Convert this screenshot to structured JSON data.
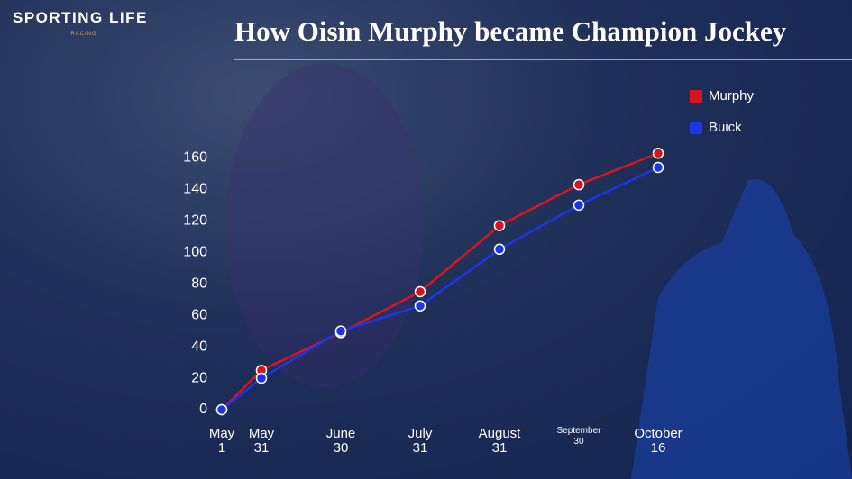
{
  "brand": {
    "name": "SPORTING LIFE",
    "sub": "RACING"
  },
  "chart_data": {
    "type": "line",
    "title": "How Oisin Murphy became Champion Jockey",
    "categories": [
      "May 1",
      "May 31",
      "June 30",
      "July 31",
      "August 31",
      "September 30",
      "October 16"
    ],
    "series": [
      {
        "name": "Murphy",
        "color": "#d7141e",
        "values": [
          0,
          25,
          49,
          75,
          117,
          143,
          163
        ]
      },
      {
        "name": "Buick",
        "color": "#1c35e6",
        "values": [
          0,
          20,
          50,
          66,
          102,
          130,
          154
        ]
      }
    ],
    "ylim": [
      0,
      170
    ],
    "yticks": [
      0,
      20,
      40,
      60,
      80,
      100,
      120,
      140,
      160
    ],
    "grid": false,
    "legend": "top-right"
  }
}
